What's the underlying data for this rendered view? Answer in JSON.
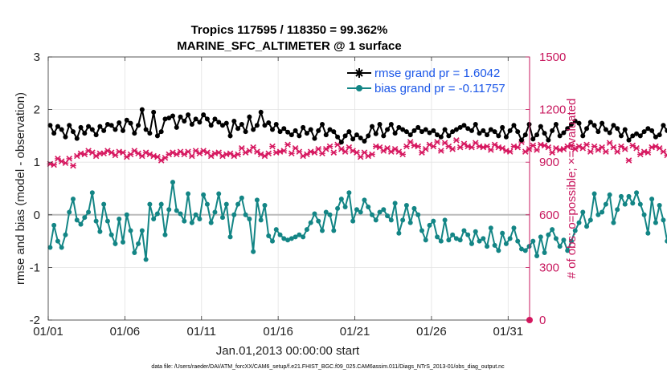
{
  "chart_data": {
    "type": "line",
    "title": "Tropics 117595 / 118350 = 99.362%",
    "subtitle": "MARINE_SFC_ALTIMETER @ 1 surface",
    "xlabel": "Jan.01,2013 00:00:00 start",
    "ylabel": "rmse and bias (model - observation)",
    "ylabel_right": "# of obs: o=possible; ×=evaluated",
    "footnote": "data file: /Users/raeder/DAI/ATM_forcXX/CAM6_setup/f.e21.FHIST_BGC.f09_025.CAM6assim.011/Diags_NTrS_2013-01/obs_diag_output.nc",
    "ylim": [
      -2,
      3
    ],
    "ylim_right": [
      0,
      1500
    ],
    "xlim": [
      0,
      31.4
    ],
    "x_ticks": [
      0,
      5,
      10,
      15,
      20,
      25,
      30
    ],
    "x_tick_labels": [
      "01/01",
      "01/06",
      "01/11",
      "01/16",
      "01/21",
      "01/26",
      "01/31"
    ],
    "y_ticks": [
      -2,
      -1,
      0,
      1,
      2,
      3
    ],
    "y_tick_labels": [
      "-2",
      "-1",
      "0",
      "1",
      "2",
      "3"
    ],
    "y_right_ticks": [
      0,
      300,
      600,
      900,
      1200,
      1500
    ],
    "y_right_tick_labels": [
      "0",
      "300",
      "600",
      "900",
      "1200",
      "1500"
    ],
    "grid": true,
    "legend_position": "top-right",
    "time_step_days": 0.25,
    "series": [
      {
        "name": "rmse grand pr = 1.6042",
        "axis": "left",
        "color": "#000000",
        "marker": "star",
        "values": [
          1.7,
          1.55,
          1.68,
          1.62,
          1.48,
          1.7,
          1.58,
          1.45,
          1.66,
          1.55,
          1.68,
          1.62,
          1.52,
          1.68,
          1.6,
          1.72,
          1.7,
          1.62,
          1.75,
          1.6,
          1.8,
          1.74,
          1.55,
          1.7,
          2.0,
          1.62,
          1.55,
          1.95,
          1.5,
          1.58,
          1.82,
          1.84,
          1.88,
          1.66,
          1.86,
          1.78,
          1.9,
          1.72,
          1.82,
          1.76,
          1.9,
          1.82,
          1.7,
          1.82,
          1.76,
          1.7,
          1.74,
          1.5,
          1.78,
          1.64,
          1.72,
          1.58,
          1.86,
          1.62,
          1.7,
          1.95,
          1.7,
          1.75,
          1.62,
          1.72,
          1.58,
          1.64,
          1.57,
          1.52,
          1.6,
          1.5,
          1.66,
          1.55,
          1.62,
          1.45,
          1.6,
          1.72,
          1.52,
          1.62,
          1.58,
          1.48,
          1.38,
          1.5,
          1.58,
          1.44,
          1.52,
          1.46,
          1.4,
          1.5,
          1.68,
          1.54,
          1.72,
          1.5,
          1.62,
          1.72,
          1.55,
          1.66,
          1.62,
          1.58,
          1.52,
          1.6,
          1.66,
          1.58,
          1.62,
          1.56,
          1.6,
          1.52,
          1.48,
          1.62,
          1.5,
          1.58,
          1.62,
          1.66,
          1.7,
          1.64,
          1.6,
          1.72,
          1.55,
          1.6,
          1.52,
          1.62,
          1.58,
          1.5,
          1.66,
          1.48,
          1.6,
          1.7,
          1.58,
          1.42,
          1.52,
          1.72,
          1.44,
          1.52,
          1.68,
          1.55,
          1.42,
          1.6,
          1.72,
          1.5,
          1.56,
          1.64,
          1.72,
          1.78,
          1.74,
          1.5,
          1.64,
          1.76,
          1.7,
          1.58,
          1.74,
          1.62,
          1.56,
          1.7,
          1.64,
          1.5,
          1.62,
          1.42,
          1.5,
          1.54,
          1.5,
          1.58,
          1.64,
          1.6,
          1.48,
          1.52,
          1.7,
          1.6,
          1.45,
          1.62,
          1.58,
          1.5,
          1.82,
          1.56,
          1.72,
          1.54,
          1.62,
          1.5,
          1.58,
          1.6,
          1.7,
          1.62,
          1.68,
          1.72,
          1.78,
          1.7,
          1.76,
          1.64,
          1.5,
          1.78,
          1.54,
          1.78,
          1.6,
          1.68,
          1.58,
          1.52,
          1.64,
          1.42,
          1.48,
          1.5,
          1.52,
          1.5,
          1.48,
          1.52,
          1.55
        ]
      },
      {
        "name": "bias grand pr = -0.11757",
        "axis": "left",
        "color": "#138585",
        "marker": "dot",
        "values": [
          -0.62,
          -0.2,
          -0.5,
          -0.62,
          -0.38,
          0.05,
          0.3,
          -0.1,
          -0.18,
          -0.05,
          0.05,
          0.42,
          -0.12,
          -0.32,
          0.2,
          -0.12,
          -0.38,
          -0.55,
          -0.08,
          -0.52,
          0.0,
          -0.3,
          -0.72,
          -0.55,
          -0.3,
          -0.85,
          0.2,
          -0.08,
          0.02,
          0.2,
          -0.38,
          0.1,
          0.62,
          0.08,
          0.02,
          -0.12,
          0.4,
          -0.15,
          0.0,
          -0.08,
          0.38,
          0.2,
          -0.15,
          0.05,
          0.4,
          -0.05,
          0.2,
          -0.42,
          0.0,
          0.2,
          0.32,
          0.0,
          -0.08,
          -0.7,
          0.28,
          -0.1,
          0.18,
          -0.4,
          -0.5,
          -0.28,
          -0.38,
          -0.45,
          -0.48,
          -0.45,
          -0.42,
          -0.38,
          -0.42,
          -0.28,
          -0.15,
          0.02,
          -0.12,
          -0.3,
          0.05,
          0.0,
          -0.3,
          0.12,
          0.3,
          0.15,
          0.42,
          -0.12,
          0.1,
          0.05,
          0.28,
          0.15,
          0.0,
          -0.1,
          0.05,
          0.1,
          -0.02,
          -0.1,
          0.22,
          -0.35,
          -0.1,
          0.18,
          -0.15,
          0.12,
          0.0,
          -0.3,
          -0.48,
          -0.2,
          -0.12,
          -0.42,
          -0.5,
          -0.1,
          -0.48,
          -0.38,
          -0.45,
          -0.48,
          -0.3,
          -0.38,
          -0.55,
          -0.32,
          -0.5,
          -0.45,
          -0.6,
          -0.25,
          -0.58,
          -0.68,
          -0.35,
          -0.55,
          -0.45,
          -0.25,
          -0.5,
          -0.65,
          -0.68,
          -0.6,
          -0.5,
          -0.78,
          -0.42,
          -0.72,
          -0.38,
          -0.28,
          -0.45,
          -0.6,
          -0.48,
          -0.68,
          -0.5,
          -0.3,
          -0.15,
          0.05,
          -0.22,
          -0.1,
          0.4,
          0.0,
          0.05,
          0.2,
          0.38,
          -0.15,
          0.1,
          0.35,
          0.2,
          0.35,
          0.22,
          0.42,
          0.2,
          0.0,
          -0.35,
          0.3,
          -0.15,
          0.18,
          -0.1,
          -0.5,
          -0.15,
          0.0,
          0.22,
          -0.2,
          -0.28,
          0.05,
          -0.42,
          -0.35,
          -0.38,
          -0.12,
          -0.48,
          0.18,
          -0.1,
          -0.4,
          -0.2,
          -0.28,
          0.0,
          -0.35,
          0.35,
          -0.25,
          -0.08,
          -0.15,
          0.05,
          0.1,
          0.0,
          -0.1,
          0.05,
          0.15,
          0.0,
          0.38,
          0.05,
          0.2,
          -0.15,
          0.3,
          0.05,
          -0.25,
          0.1,
          -0.05,
          0.05,
          0.15,
          0.05,
          -0.1,
          0.28
        ]
      },
      {
        "name": "# of obs evaluated",
        "axis": "right",
        "color": "#d6175f",
        "marker": "x",
        "values": [
          890,
          885,
          920,
          905,
          895,
          920,
          880,
          935,
          950,
          945,
          965,
          955,
          935,
          950,
          950,
          965,
          955,
          940,
          960,
          955,
          930,
          945,
          965,
          950,
          935,
          955,
          945,
          935,
          930,
          910,
          925,
          945,
          955,
          945,
          960,
          945,
          960,
          935,
          965,
          950,
          965,
          955,
          935,
          950,
          955,
          935,
          945,
          950,
          935,
          945,
          980,
          955,
          965,
          985,
          960,
          945,
          935,
          950,
          990,
          955,
          960,
          965,
          1000,
          950,
          980,
          960,
          935,
          945,
          960,
          955,
          975,
          950,
          975,
          990,
          955,
          1000,
          975,
          960,
          985,
          965,
          955,
          930,
          955,
          935,
          945,
          990,
          985,
          965,
          980,
          960,
          975,
          960,
          945,
          990,
          1015,
          995,
          990,
          955,
          975,
          1000,
          990,
          1015,
          965,
          1010,
          990,
          975,
          1025,
          985,
          1005,
          990,
          985,
          1010,
          990,
          985,
          990,
          970,
          1000,
          985,
          980,
          965,
          960,
          990,
          985,
          1015,
          960,
          975,
          995,
          970,
          1000,
          995,
          985,
          955,
          980,
          970,
          975,
          990,
          995,
          975,
          990,
          980,
          1000,
          960,
          990,
          970,
          985,
          960,
          1010,
          985,
          960,
          990,
          975,
          910,
          995,
          980,
          945,
          960,
          955,
          985,
          990,
          980,
          960,
          940,
          935,
          920,
          905,
          905,
          940,
          920,
          890,
          905,
          920,
          900,
          925,
          970,
          935,
          945,
          975,
          950,
          930,
          955,
          1005,
          950,
          935,
          980,
          1000,
          990,
          960,
          990,
          1010,
          995,
          975,
          1000,
          995,
          970,
          990,
          980,
          1010,
          985,
          965,
          975,
          985,
          960,
          1000,
          985,
          960,
          980,
          975,
          940,
          950,
          920
        ]
      }
    ],
    "annotations": [
      {
        "label": "o possible at end",
        "x": 31.4,
        "y_right": 0
      }
    ]
  },
  "colors": {
    "rmse": "#000000",
    "bias": "#138585",
    "obs": "#d6175f",
    "right_axis": "#c8175d",
    "legend_text": "#1a56e8",
    "zero_line": "#bbbbbb"
  }
}
